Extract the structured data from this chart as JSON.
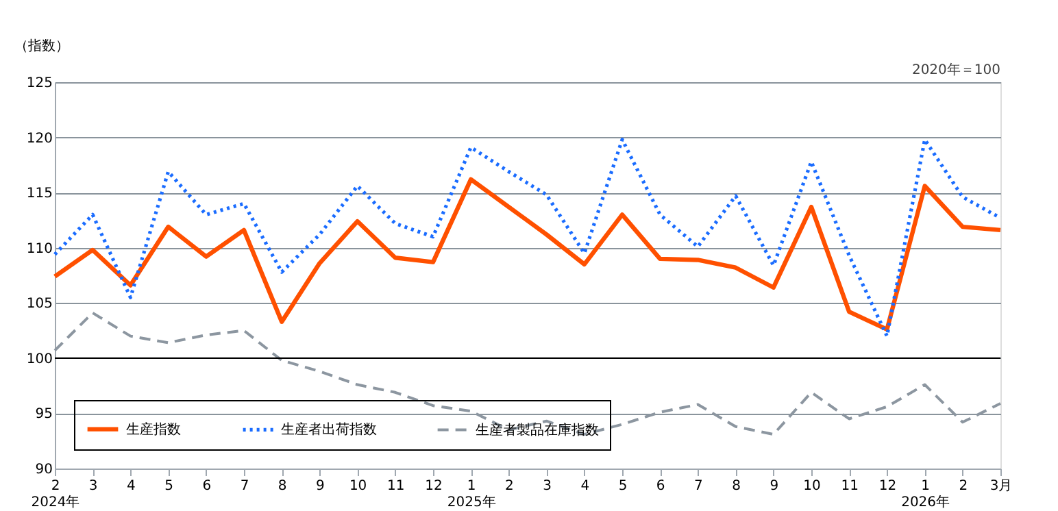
{
  "chart_data": {
    "type": "line",
    "ylabel": "（指数）",
    "annotations": [
      "2020年＝100"
    ],
    "categories": [
      "2\n2024年",
      "3",
      "4",
      "5",
      "6",
      "7",
      "8",
      "9",
      "10",
      "11",
      "12",
      "1\n2025年",
      "2",
      "3",
      "4",
      "5",
      "6",
      "7",
      "8",
      "9",
      "10",
      "11",
      "12",
      "1\n2026年",
      "2",
      "3月"
    ],
    "series": [
      {
        "name": "生産指数",
        "color": "#ff5000",
        "line_style": "solid",
        "values": [
          107.4,
          109.8,
          106.6,
          111.9,
          109.2,
          111.6,
          103.3,
          108.6,
          112.4,
          109.1,
          108.7,
          116.2,
          113.7,
          111.2,
          108.5,
          113.0,
          109.0,
          108.9,
          108.2,
          106.4,
          113.7,
          104.2,
          102.6,
          115.6,
          111.9,
          111.6
        ]
      },
      {
        "name": "生産者出荷指数",
        "color": "#1a6cff",
        "line_style": "dotted",
        "values": [
          109.4,
          113.0,
          105.5,
          116.9,
          113.0,
          114.0,
          107.8,
          111.2,
          115.6,
          112.2,
          111.0,
          119.1,
          116.9,
          114.8,
          109.5,
          119.8,
          113.0,
          110.1,
          114.7,
          108.4,
          117.8,
          109.3,
          102.0,
          119.8,
          114.6,
          112.7
        ]
      },
      {
        "name": "生産者製品在庫指数",
        "color": "#8c96a0",
        "line_style": "dashed",
        "values": [
          100.7,
          104.1,
          102.0,
          101.4,
          102.1,
          102.5,
          99.8,
          98.8,
          97.6,
          96.9,
          95.7,
          95.2,
          93.5,
          94.3,
          93.1,
          94.0,
          95.1,
          95.8,
          93.8,
          93.1,
          96.9,
          94.5,
          95.6,
          97.6,
          94.2,
          95.9
        ]
      }
    ],
    "ylim": [
      90,
      125
    ],
    "yticks": [
      90,
      95,
      100,
      105,
      110,
      115,
      120,
      125
    ],
    "ref_lines": [
      {
        "axis": "y",
        "value": 100,
        "color": "#000000"
      }
    ],
    "grid": "y",
    "legend": "bottom left"
  }
}
